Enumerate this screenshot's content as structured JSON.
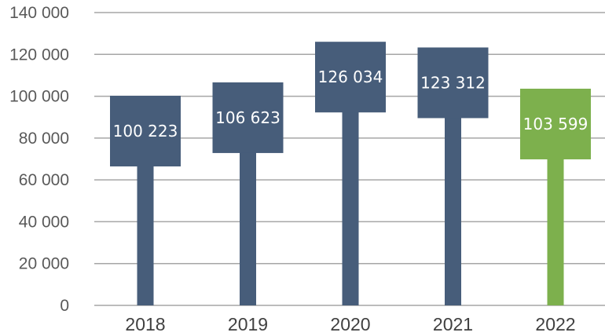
{
  "chart_data": {
    "type": "bar",
    "title": "",
    "xlabel": "",
    "ylabel": "",
    "categories": [
      "2018",
      "2019",
      "2020",
      "2021",
      "2022"
    ],
    "values": [
      100223,
      106623,
      126034,
      123312,
      103599
    ],
    "value_labels": [
      "100 223",
      "106 623",
      "126 034",
      "123 312",
      "103 599"
    ],
    "ylim": [
      0,
      140000
    ],
    "yticks": [
      0,
      20000,
      40000,
      60000,
      80000,
      100000,
      120000,
      140000
    ],
    "ytick_labels": [
      "0",
      "20 000",
      "40 000",
      "60 000",
      "80 000",
      "100 000",
      "120 000",
      "140 000"
    ],
    "grid": true,
    "legend": "none",
    "colors": [
      "#475d7a",
      "#475d7a",
      "#475d7a",
      "#475d7a",
      "#7db04d"
    ]
  }
}
